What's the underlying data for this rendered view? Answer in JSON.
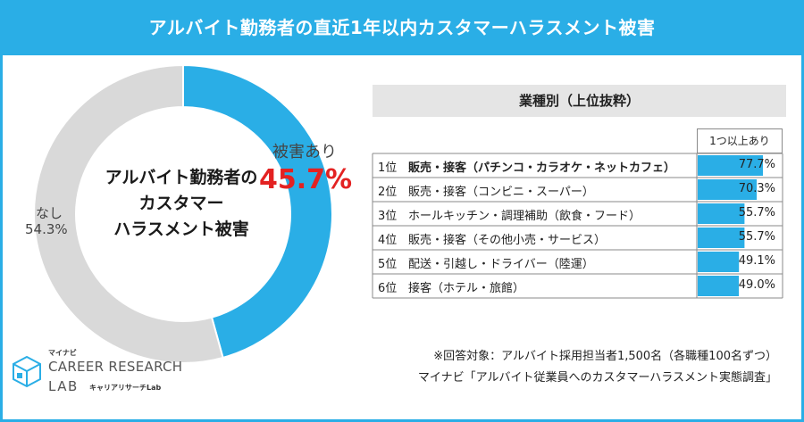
{
  "title": "アルバイト勤務者の直近1年以内カスタマーハラスメント被害",
  "colors": {
    "accent": "#2aaee6",
    "damage": "#2aaee6",
    "none": "#d9d9d9",
    "highlight": "#e32222",
    "bar": "#2aaee6"
  },
  "donut": {
    "center_lines": [
      "アルバイト勤務者の",
      "カスタマー",
      "ハラスメント被害"
    ]
  },
  "table": {
    "header": "業種別（上位抜粋）",
    "column_header": "1つ以上あり"
  },
  "chart_data": [
    {
      "type": "pie",
      "title": "アルバイト勤務者の直近1年以内カスタマーハラスメント被害",
      "labels": [
        "被害あり",
        "なし"
      ],
      "values": [
        45.7,
        54.3
      ],
      "value_labels": [
        "45.7%",
        "54.3%"
      ]
    },
    {
      "type": "bar",
      "title": "業種別（上位抜粋）",
      "series": [
        {
          "name": "1つ以上あり",
          "values": [
            77.7,
            70.3,
            55.7,
            55.7,
            49.1,
            49.0
          ]
        }
      ],
      "ranks": [
        "1位",
        "2位",
        "3位",
        "4位",
        "5位",
        "6位"
      ],
      "categories": [
        "販売・接客（パチンコ・カラオケ・ネットカフェ）",
        "販売・接客（コンビニ・スーパー）",
        "ホールキッチン・調理補助（飲食・フード）",
        "販売・接客（その他小売・サービス）",
        "配送・引越し・ドライバー（陸運）",
        "接客（ホテル・旅館）"
      ],
      "value_labels": [
        "77.7%",
        "70.3%",
        "55.7%",
        "55.7%",
        "49.1%",
        "49.0%"
      ],
      "xlim": [
        0,
        100
      ]
    }
  ],
  "footnote": {
    "line1": "※回答対象：アルバイト採用担当者1,500名（各職種100名ずつ）",
    "line2": "マイナビ「アルバイト従業員へのカスタマーハラスメント実態調査」"
  },
  "logo": {
    "small": "マイナビ",
    "main": "CAREER RESEARCH",
    "lab": "LAB",
    "kana": "キャリアリサーチLab"
  }
}
